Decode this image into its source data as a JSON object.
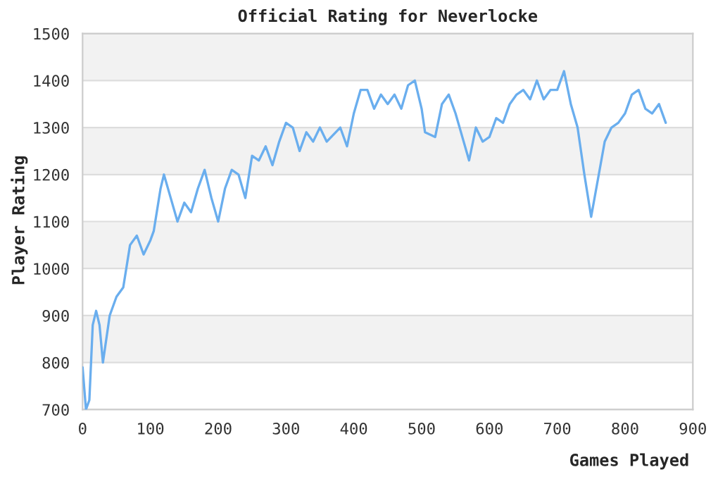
{
  "chart_data": {
    "type": "line",
    "title": "Official Rating for Neverlocke",
    "xlabel": "Games Played",
    "ylabel": "Player Rating",
    "xlim": [
      0,
      900
    ],
    "xticks": [
      0,
      100,
      200,
      300,
      400,
      500,
      600,
      700,
      800,
      900
    ],
    "ylim": [
      700,
      1500
    ],
    "yticks": [
      700,
      800,
      900,
      1000,
      1100,
      1200,
      1300,
      1400,
      1500
    ],
    "grid": "y",
    "legend": false,
    "marker": "none",
    "line_style": "solid",
    "series": [
      {
        "color": "#6aaeee",
        "x": [
          0,
          5,
          10,
          15,
          20,
          25,
          30,
          40,
          50,
          60,
          70,
          80,
          90,
          100,
          105,
          115,
          120,
          130,
          140,
          150,
          160,
          170,
          180,
          190,
          200,
          210,
          220,
          230,
          240,
          250,
          260,
          270,
          280,
          290,
          300,
          310,
          320,
          330,
          340,
          350,
          360,
          380,
          390,
          400,
          410,
          420,
          430,
          440,
          450,
          460,
          470,
          480,
          490,
          500,
          505,
          520,
          530,
          540,
          550,
          560,
          570,
          580,
          590,
          600,
          610,
          620,
          630,
          640,
          650,
          660,
          670,
          680,
          690,
          700,
          710,
          720,
          730,
          740,
          750,
          760,
          770,
          780,
          790,
          800,
          810,
          820,
          830,
          840,
          850,
          860
        ],
        "values": [
          790,
          700,
          720,
          880,
          910,
          880,
          800,
          900,
          940,
          960,
          1050,
          1070,
          1030,
          1060,
          1080,
          1170,
          1200,
          1150,
          1100,
          1140,
          1120,
          1170,
          1210,
          1150,
          1100,
          1170,
          1210,
          1200,
          1150,
          1240,
          1230,
          1260,
          1220,
          1270,
          1310,
          1300,
          1250,
          1290,
          1270,
          1300,
          1270,
          1300,
          1260,
          1330,
          1380,
          1380,
          1340,
          1370,
          1350,
          1370,
          1340,
          1390,
          1400,
          1340,
          1290,
          1280,
          1350,
          1370,
          1330,
          1280,
          1230,
          1300,
          1270,
          1280,
          1320,
          1310,
          1350,
          1370,
          1380,
          1360,
          1400,
          1360,
          1380,
          1380,
          1420,
          1350,
          1300,
          1200,
          1110,
          1190,
          1270,
          1300,
          1310,
          1330,
          1370,
          1380,
          1340,
          1330,
          1350,
          1310
        ]
      }
    ]
  }
}
